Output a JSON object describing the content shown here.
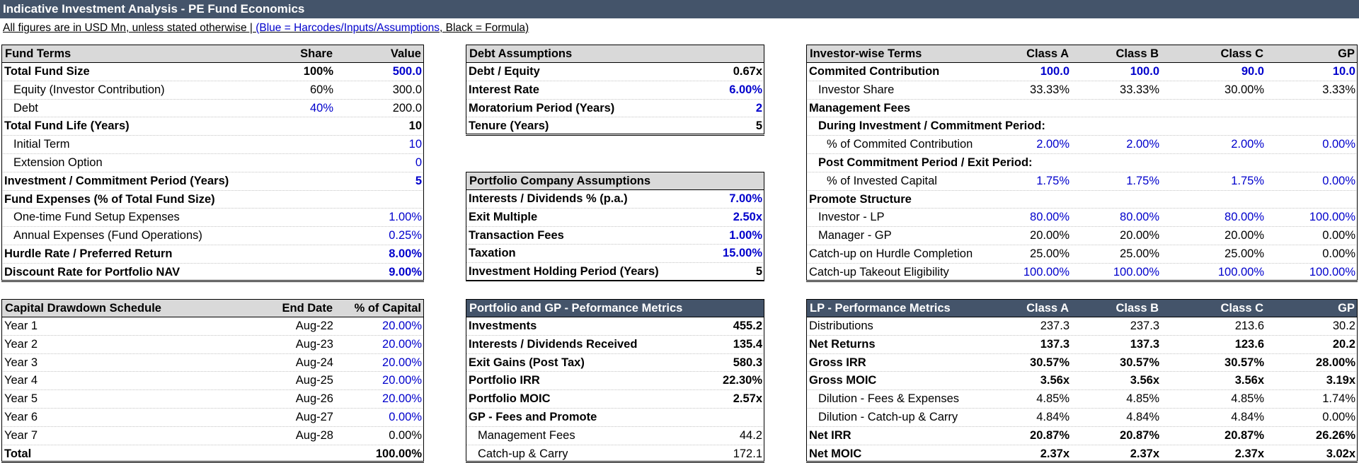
{
  "title": "Indicative Investment Analysis - PE Fund Economics",
  "note": {
    "prefix": "All figures are in USD Mn, unless stated otherwise | ",
    "blue": "(Blue = Harcodes/Inputs/Assumptions",
    "suffix": ", Black = Formula)"
  },
  "fund_terms": {
    "header": {
      "label": "Fund Terms",
      "share": "Share",
      "value": "Value"
    },
    "rows": [
      {
        "label": "Total Fund Size",
        "share": "100%",
        "value": "500.0"
      },
      {
        "label": "Equity (Investor Contribution)",
        "share": "60%",
        "value": "300.0"
      },
      {
        "label": "Debt",
        "share": "40%",
        "value": "200.0"
      },
      {
        "label": "Total Fund Life (Years)",
        "share": "",
        "value": "10"
      },
      {
        "label": "Initial Term",
        "share": "",
        "value": "10"
      },
      {
        "label": "Extension Option",
        "share": "",
        "value": "0"
      },
      {
        "label": "Investment / Commitment Period (Years)",
        "share": "",
        "value": "5"
      },
      {
        "label": "Fund Expenses (% of Total Fund Size)",
        "share": "",
        "value": ""
      },
      {
        "label": "One-time Fund Setup Expenses",
        "share": "",
        "value": "1.00%"
      },
      {
        "label": "Annual Expenses (Fund Operations)",
        "share": "",
        "value": "0.25%"
      },
      {
        "label": "Hurdle Rate / Preferred Return",
        "share": "",
        "value": "8.00%"
      },
      {
        "label": "Discount Rate for Portfolio NAV",
        "share": "",
        "value": "9.00%"
      }
    ]
  },
  "debt_assumptions": {
    "header": "Debt Assumptions",
    "rows": [
      {
        "label": "Debt / Equity",
        "value": "0.67x"
      },
      {
        "label": "Interest Rate",
        "value": "6.00%"
      },
      {
        "label": "Moratorium Period (Years)",
        "value": "2"
      },
      {
        "label": "Tenure (Years)",
        "value": "5"
      }
    ]
  },
  "portfolio_assumptions": {
    "header": "Portfolio Company Assumptions",
    "rows": [
      {
        "label": "Interests / Dividends % (p.a.)",
        "value": "7.00%"
      },
      {
        "label": "Exit Multiple",
        "value": "2.50x"
      },
      {
        "label": "Transaction Fees",
        "value": "1.00%"
      },
      {
        "label": "Taxation",
        "value": "15.00%"
      },
      {
        "label": "Investment Holding Period (Years)",
        "value": "5"
      }
    ]
  },
  "investor_terms": {
    "header": [
      "Investor-wise Terms",
      "Class A",
      "Class B",
      "Class C",
      "GP"
    ],
    "rows": [
      {
        "label": "Commited Contribution",
        "vals": [
          "100.0",
          "100.0",
          "90.0",
          "10.0"
        ]
      },
      {
        "label": "Investor Share",
        "vals": [
          "33.33%",
          "33.33%",
          "30.00%",
          "3.33%"
        ]
      },
      {
        "label": "Management Fees",
        "vals": [
          "",
          "",
          "",
          ""
        ]
      },
      {
        "label": "During Investment / Commitment Period:",
        "vals": [
          "",
          "",
          "",
          ""
        ]
      },
      {
        "label": "% of Commited Contribution",
        "vals": [
          "2.00%",
          "2.00%",
          "2.00%",
          "0.00%"
        ]
      },
      {
        "label": "Post Commitment Period / Exit Period:",
        "vals": [
          "",
          "",
          "",
          ""
        ]
      },
      {
        "label": "% of Invested Capital",
        "vals": [
          "1.75%",
          "1.75%",
          "1.75%",
          "0.00%"
        ]
      },
      {
        "label": "Promote Structure",
        "vals": [
          "",
          "",
          "",
          ""
        ]
      },
      {
        "label": "Investor - LP",
        "vals": [
          "80.00%",
          "80.00%",
          "80.00%",
          "100.00%"
        ]
      },
      {
        "label": "Manager - GP",
        "vals": [
          "20.00%",
          "20.00%",
          "20.00%",
          "0.00%"
        ]
      },
      {
        "label": "Catch-up on Hurdle Completion",
        "vals": [
          "25.00%",
          "25.00%",
          "25.00%",
          "0.00%"
        ]
      },
      {
        "label": "Catch-up Takeout Eligibility",
        "vals": [
          "100.00%",
          "100.00%",
          "100.00%",
          "100.00%"
        ]
      }
    ]
  },
  "drawdown": {
    "header": {
      "label": "Capital Drawdown Schedule",
      "date": "End Date",
      "pct": "% of Capital"
    },
    "rows": [
      {
        "label": "Year 1",
        "date": "Aug-22",
        "pct": "20.00%"
      },
      {
        "label": "Year 2",
        "date": "Aug-23",
        "pct": "20.00%"
      },
      {
        "label": "Year 3",
        "date": "Aug-24",
        "pct": "20.00%"
      },
      {
        "label": "Year 4",
        "date": "Aug-25",
        "pct": "20.00%"
      },
      {
        "label": "Year 5",
        "date": "Aug-26",
        "pct": "20.00%"
      },
      {
        "label": "Year 6",
        "date": "Aug-27",
        "pct": "0.00%"
      },
      {
        "label": "Year 7",
        "date": "Aug-28",
        "pct": "0.00%"
      },
      {
        "label": "Total",
        "date": "",
        "pct": "100.00%"
      }
    ]
  },
  "gp_metrics": {
    "header": "Portfolio and GP - Peformance Metrics",
    "rows": [
      {
        "label": "Investments",
        "value": "455.2"
      },
      {
        "label": "Interests / Dividends Received",
        "value": "135.4"
      },
      {
        "label": "Exit Gains (Post Tax)",
        "value": "580.3"
      },
      {
        "label": "Portfolio IRR",
        "value": "22.30%"
      },
      {
        "label": "Portfolio MOIC",
        "value": "2.57x"
      },
      {
        "label": "GP - Fees and Promote",
        "value": ""
      },
      {
        "label": "Management Fees",
        "value": "44.2"
      },
      {
        "label": "Catch-up & Carry",
        "value": "172.1"
      }
    ]
  },
  "lp_metrics": {
    "header": [
      "LP - Performance Metrics",
      "Class A",
      "Class B",
      "Class C",
      "GP"
    ],
    "rows": [
      {
        "label": "Distributions",
        "vals": [
          "237.3",
          "237.3",
          "213.6",
          "30.2"
        ]
      },
      {
        "label": "Net Returns",
        "vals": [
          "137.3",
          "137.3",
          "123.6",
          "20.2"
        ]
      },
      {
        "label": "Gross IRR",
        "vals": [
          "30.57%",
          "30.57%",
          "30.57%",
          "28.00%"
        ]
      },
      {
        "label": "Gross MOIC",
        "vals": [
          "3.56x",
          "3.56x",
          "3.56x",
          "3.19x"
        ]
      },
      {
        "label": "Dilution - Fees & Expenses",
        "vals": [
          "4.85%",
          "4.85%",
          "4.85%",
          "1.74%"
        ]
      },
      {
        "label": "Dilution - Catch-up & Carry",
        "vals": [
          "4.84%",
          "4.84%",
          "4.84%",
          "0.00%"
        ]
      },
      {
        "label": "Net IRR",
        "vals": [
          "20.87%",
          "20.87%",
          "20.87%",
          "26.26%"
        ]
      },
      {
        "label": "Net MOIC",
        "vals": [
          "2.37x",
          "2.37x",
          "2.37x",
          "3.02x"
        ]
      }
    ]
  },
  "colors": {
    "header_dark": "#44546a",
    "header_light": "#d9d9d9",
    "input_blue": "#0000cc"
  }
}
